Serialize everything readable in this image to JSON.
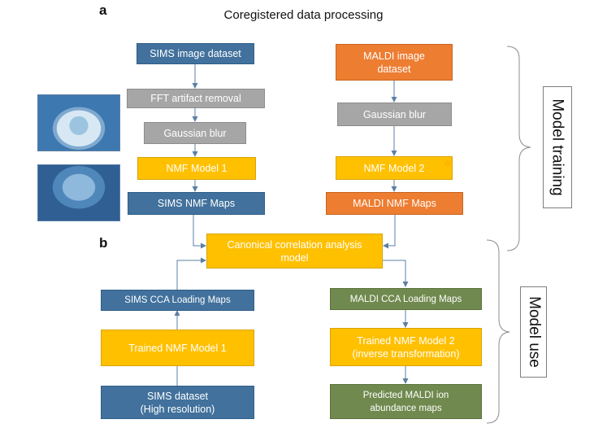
{
  "header": {
    "panel_a": "a",
    "panel_b": "b",
    "title": "Coregistered data processing"
  },
  "boxes": {
    "sims_image_dataset": "SIMS image dataset",
    "fft_artifact_removal": "FFT artifact removal",
    "gaussian_blur_left": "Gaussian blur",
    "nmf_model_1": "NMF Model 1",
    "sims_nmf_maps": "SIMS NMF Maps",
    "maldi_image_dataset": "MALDI image\ndataset",
    "gaussian_blur_right": "Gaussian blur",
    "nmf_model_2": "NMF Model 2",
    "maldi_nmf_maps": "MALDI NMF Maps",
    "cca_model": "Canonical correlation analysis\nmodel",
    "sims_cca_loading_maps": "SIMS CCA Loading Maps",
    "maldi_cca_loading_maps": "MALDI CCA Loading Maps",
    "trained_nmf_model_1": "Trained NMF Model 1",
    "trained_nmf_model_2": "Trained NMF Model 2\n(inverse transformation)",
    "sims_dataset": "SIMS dataset\n(High resolution)",
    "predicted_maldi_maps": "Predicted MALDI ion\nabundance maps"
  },
  "side_labels": {
    "model_training": "Model training",
    "model_use": "Model use"
  },
  "colors": {
    "blue": "#41719c",
    "gray": "#a6a6a6",
    "yellow": "#ffc000",
    "orange": "#ed7d31",
    "green": "#70894e",
    "arrow": "#5b7fa6"
  },
  "icons": {
    "star": "star-icon"
  }
}
